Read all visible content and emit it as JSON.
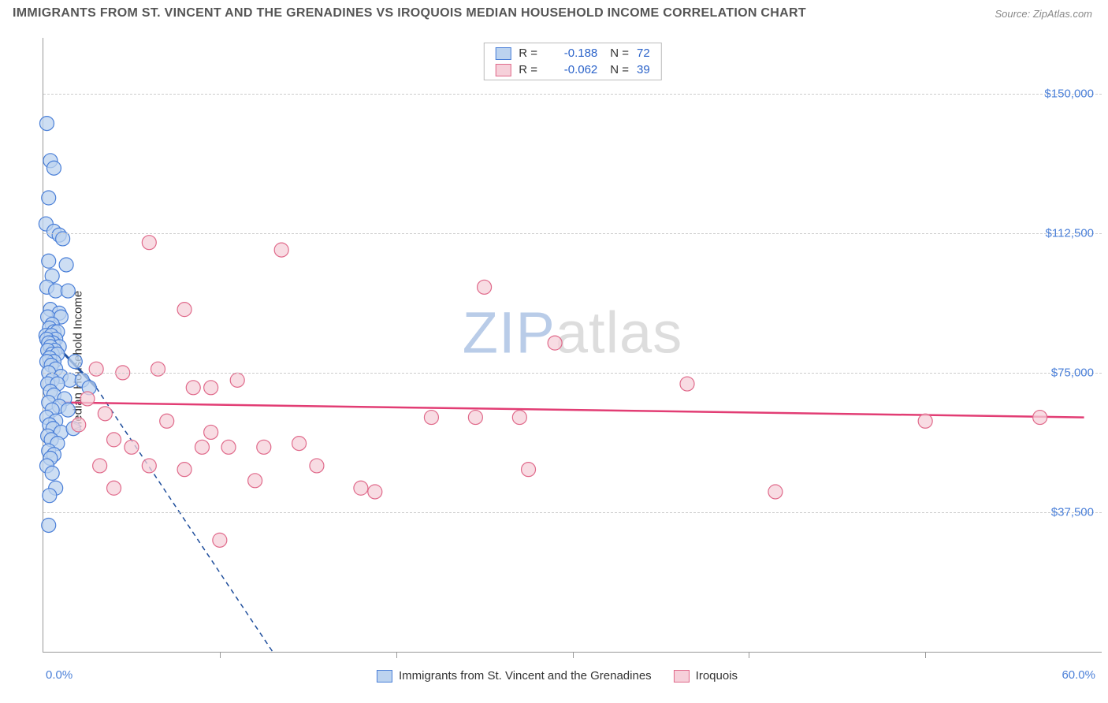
{
  "title": "IMMIGRANTS FROM ST. VINCENT AND THE GRENADINES VS IROQUOIS MEDIAN HOUSEHOLD INCOME CORRELATION CHART",
  "source": "Source: ZipAtlas.com",
  "watermark_zip": "ZIP",
  "watermark_atlas": "atlas",
  "chart": {
    "type": "scatter",
    "background_color": "#ffffff",
    "grid_color": "#cccccc",
    "axis_color": "#999999",
    "xlim": [
      0,
      60
    ],
    "ylim": [
      0,
      165000
    ],
    "x_tick_interval": 10,
    "y_grid_values": [
      37500,
      75000,
      112500,
      150000
    ],
    "y_tick_labels": [
      "$37,500",
      "$75,000",
      "$112,500",
      "$150,000"
    ],
    "x_start_label": "0.0%",
    "x_end_label": "60.0%",
    "yaxis_label": "Median Household Income",
    "tick_label_color": "#4a7fd8",
    "tick_label_fontsize": 15,
    "yaxis_label_fontsize": 15,
    "yaxis_label_color": "#333333"
  },
  "series": [
    {
      "name": "Immigrants from St. Vincent and the Grenadines",
      "R": "-0.188",
      "N": "72",
      "marker_fill": "#bcd3ef",
      "marker_stroke": "#4a7fd8",
      "marker_radius": 9,
      "marker_opacity": 0.75,
      "trend_color": "#1f4e9c",
      "trend_width": 3,
      "trend_solid": {
        "x1": 0,
        "y1": 86000,
        "x2": 3.0,
        "y2": 71000
      },
      "trend_dashed": {
        "x1": 3.0,
        "y1": 71000,
        "x2": 13.0,
        "y2": 0
      },
      "points": [
        [
          0.2,
          142000
        ],
        [
          0.4,
          132000
        ],
        [
          0.6,
          130000
        ],
        [
          0.3,
          122000
        ],
        [
          0.15,
          115000
        ],
        [
          0.6,
          113000
        ],
        [
          0.9,
          112000
        ],
        [
          1.1,
          111000
        ],
        [
          0.3,
          105000
        ],
        [
          1.3,
          104000
        ],
        [
          0.5,
          101000
        ],
        [
          0.2,
          98000
        ],
        [
          0.7,
          97000
        ],
        [
          1.4,
          97000
        ],
        [
          0.4,
          92000
        ],
        [
          0.9,
          91000
        ],
        [
          0.25,
          90000
        ],
        [
          1.0,
          90000
        ],
        [
          0.5,
          88000
        ],
        [
          0.35,
          87000
        ],
        [
          0.6,
          86000
        ],
        [
          0.8,
          86000
        ],
        [
          0.15,
          85000
        ],
        [
          0.45,
          85000
        ],
        [
          0.7,
          84000
        ],
        [
          0.2,
          84000
        ],
        [
          0.55,
          83000
        ],
        [
          0.3,
          83000
        ],
        [
          0.9,
          82000
        ],
        [
          0.4,
          82000
        ],
        [
          0.65,
          81000
        ],
        [
          0.25,
          81000
        ],
        [
          0.5,
          80000
        ],
        [
          0.8,
          80000
        ],
        [
          0.35,
          79000
        ],
        [
          0.6,
          78000
        ],
        [
          0.2,
          78000
        ],
        [
          0.45,
          77000
        ],
        [
          0.7,
          76000
        ],
        [
          0.3,
          75000
        ],
        [
          1.0,
          74000
        ],
        [
          0.5,
          73000
        ],
        [
          1.5,
          73000
        ],
        [
          0.25,
          72000
        ],
        [
          0.8,
          72000
        ],
        [
          2.2,
          73000
        ],
        [
          0.4,
          70000
        ],
        [
          0.6,
          69000
        ],
        [
          1.2,
          68000
        ],
        [
          0.3,
          67000
        ],
        [
          0.9,
          66000
        ],
        [
          0.5,
          65000
        ],
        [
          1.4,
          65000
        ],
        [
          0.2,
          63000
        ],
        [
          0.7,
          62000
        ],
        [
          0.35,
          61000
        ],
        [
          0.55,
          60000
        ],
        [
          1.0,
          59000
        ],
        [
          0.25,
          58000
        ],
        [
          0.45,
          57000
        ],
        [
          0.8,
          56000
        ],
        [
          1.7,
          60000
        ],
        [
          0.3,
          54000
        ],
        [
          0.6,
          53000
        ],
        [
          0.4,
          52000
        ],
        [
          0.2,
          50000
        ],
        [
          0.5,
          48000
        ],
        [
          0.7,
          44000
        ],
        [
          0.35,
          42000
        ],
        [
          0.3,
          34000
        ],
        [
          2.6,
          71000
        ],
        [
          1.8,
          78000
        ]
      ]
    },
    {
      "name": "Iroquois",
      "R": "-0.062",
      "N": "39",
      "marker_fill": "#f6d0da",
      "marker_stroke": "#e06a8b",
      "marker_radius": 9,
      "marker_opacity": 0.75,
      "trend_color": "#e23d74",
      "trend_width": 2.5,
      "trend_solid": {
        "x1": 1.0,
        "y1": 67000,
        "x2": 59.0,
        "y2": 63000
      },
      "points": [
        [
          6.0,
          110000
        ],
        [
          13.5,
          108000
        ],
        [
          25.0,
          98000
        ],
        [
          29.0,
          83000
        ],
        [
          8.0,
          92000
        ],
        [
          3.0,
          76000
        ],
        [
          4.5,
          75000
        ],
        [
          6.5,
          76000
        ],
        [
          8.5,
          71000
        ],
        [
          9.5,
          71000
        ],
        [
          11.0,
          73000
        ],
        [
          36.5,
          72000
        ],
        [
          3.5,
          64000
        ],
        [
          22.0,
          63000
        ],
        [
          24.5,
          63000
        ],
        [
          27.0,
          63000
        ],
        [
          50.0,
          62000
        ],
        [
          56.5,
          63000
        ],
        [
          4.0,
          57000
        ],
        [
          5.0,
          55000
        ],
        [
          9.0,
          55000
        ],
        [
          10.5,
          55000
        ],
        [
          12.5,
          55000
        ],
        [
          14.5,
          56000
        ],
        [
          2.0,
          61000
        ],
        [
          3.2,
          50000
        ],
        [
          6.0,
          50000
        ],
        [
          8.0,
          49000
        ],
        [
          12.0,
          46000
        ],
        [
          15.5,
          50000
        ],
        [
          27.5,
          49000
        ],
        [
          4.0,
          44000
        ],
        [
          18.0,
          44000
        ],
        [
          18.8,
          43000
        ],
        [
          41.5,
          43000
        ],
        [
          10.0,
          30000
        ],
        [
          9.5,
          59000
        ],
        [
          7.0,
          62000
        ],
        [
          2.5,
          68000
        ]
      ]
    }
  ],
  "legend_bottom": [
    {
      "label": "Immigrants from St. Vincent and the Grenadines",
      "fill": "#bcd3ef",
      "stroke": "#4a7fd8"
    },
    {
      "label": "Iroquois",
      "fill": "#f6d0da",
      "stroke": "#e06a8b"
    }
  ]
}
